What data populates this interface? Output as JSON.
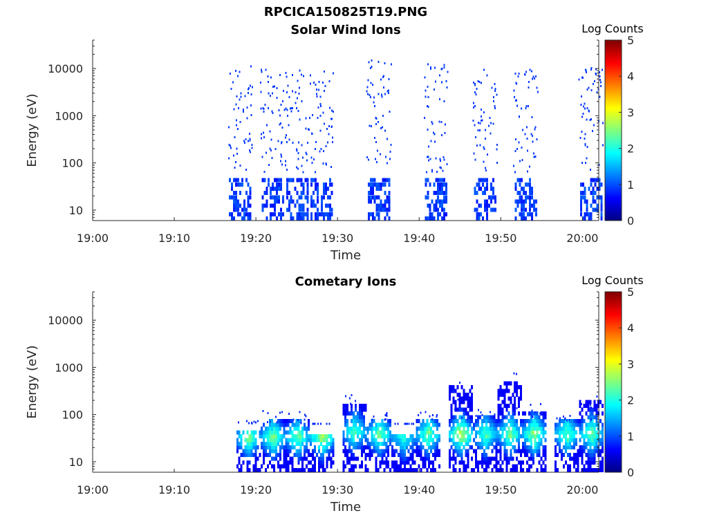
{
  "figure": {
    "title": "RPCICA150825T19.PNG"
  },
  "chart_data": [
    {
      "type": "heatmap",
      "title": "Solar Wind Ions",
      "xlabel": "Time",
      "ylabel": "Energy (eV)",
      "x_range": [
        "19:00",
        "20:02"
      ],
      "x_ticks": [
        "19:00",
        "19:10",
        "19:20",
        "19:30",
        "19:40",
        "19:50",
        "20:00"
      ],
      "ylim": [
        6,
        40000
      ],
      "y_scale": "log",
      "y_ticks": [
        10,
        100,
        1000,
        10000
      ],
      "colorbar": {
        "label": "Log Counts",
        "range": [
          0,
          5
        ],
        "ticks": [
          0,
          1,
          2,
          3,
          4,
          5
        ],
        "colormap": "jet"
      },
      "bursts": [
        {
          "time": "19:18",
          "low_energy_value": 1.0,
          "peak_energy_eV": 20,
          "extends_to_eV": 12000
        },
        {
          "time": "19:22",
          "low_energy_value": 1.0,
          "peak_energy_eV": 22,
          "extends_to_eV": 11000
        },
        {
          "time": "19:25",
          "low_energy_value": 1.0,
          "peak_energy_eV": 20,
          "extends_to_eV": 12000
        },
        {
          "time": "19:28",
          "low_energy_value": 1.0,
          "peak_energy_eV": 20,
          "extends_to_eV": 10000
        },
        {
          "time": "19:35",
          "low_energy_value": 1.0,
          "peak_energy_eV": 25,
          "extends_to_eV": 14000
        },
        {
          "time": "19:42",
          "low_energy_value": 1.0,
          "peak_energy_eV": 22,
          "extends_to_eV": 12000
        },
        {
          "time": "19:48",
          "low_energy_value": 1.0,
          "peak_energy_eV": 25,
          "extends_to_eV": 9000
        },
        {
          "time": "19:53",
          "low_energy_value": 1.0,
          "peak_energy_eV": 25,
          "extends_to_eV": 9000
        },
        {
          "time": "20:01",
          "low_energy_value": 1.0,
          "peak_energy_eV": 25,
          "extends_to_eV": 10000
        }
      ]
    },
    {
      "type": "heatmap",
      "title": "Cometary Ions",
      "xlabel": "Time",
      "ylabel": "Energy (eV)",
      "x_range": [
        "19:00",
        "20:02"
      ],
      "x_ticks": [
        "19:00",
        "19:10",
        "19:20",
        "19:30",
        "19:40",
        "19:50",
        "20:00"
      ],
      "ylim": [
        6,
        40000
      ],
      "y_scale": "log",
      "y_ticks": [
        10,
        100,
        1000,
        10000
      ],
      "colorbar": {
        "label": "Log Counts",
        "range": [
          0,
          5
        ],
        "ticks": [
          0,
          1,
          2,
          3,
          4,
          5
        ],
        "colormap": "jet"
      },
      "bursts": [
        {
          "time": "19:19",
          "peak_value": 2.0,
          "peak_energy_eV": 30,
          "top_energy_eV": 70
        },
        {
          "time": "19:22",
          "peak_value": 2.0,
          "peak_energy_eV": 30,
          "top_energy_eV": 120
        },
        {
          "time": "19:25",
          "peak_value": 2.0,
          "peak_energy_eV": 30,
          "top_energy_eV": 110
        },
        {
          "time": "19:28",
          "peak_value": 2.2,
          "peak_energy_eV": 30,
          "top_energy_eV": 60
        },
        {
          "time": "19:32",
          "peak_value": 1.8,
          "peak_energy_eV": 40,
          "top_energy_eV": 250
        },
        {
          "time": "19:35",
          "peak_value": 2.0,
          "peak_energy_eV": 35,
          "top_energy_eV": 110
        },
        {
          "time": "19:38",
          "peak_value": 1.6,
          "peak_energy_eV": 30,
          "top_energy_eV": 60
        },
        {
          "time": "19:41",
          "peak_value": 2.0,
          "peak_energy_eV": 35,
          "top_energy_eV": 130
        },
        {
          "time": "19:45",
          "peak_value": 2.4,
          "peak_energy_eV": 35,
          "top_energy_eV": 650
        },
        {
          "time": "19:48",
          "peak_value": 1.8,
          "peak_energy_eV": 35,
          "top_energy_eV": 150
        },
        {
          "time": "19:51",
          "peak_value": 2.0,
          "peak_energy_eV": 35,
          "top_energy_eV": 800
        },
        {
          "time": "19:54",
          "peak_value": 2.2,
          "peak_energy_eV": 35,
          "top_energy_eV": 160
        },
        {
          "time": "19:58",
          "peak_value": 2.0,
          "peak_energy_eV": 35,
          "top_energy_eV": 110
        },
        {
          "time": "20:01",
          "peak_value": 2.0,
          "peak_energy_eV": 35,
          "top_energy_eV": 300
        }
      ]
    }
  ]
}
